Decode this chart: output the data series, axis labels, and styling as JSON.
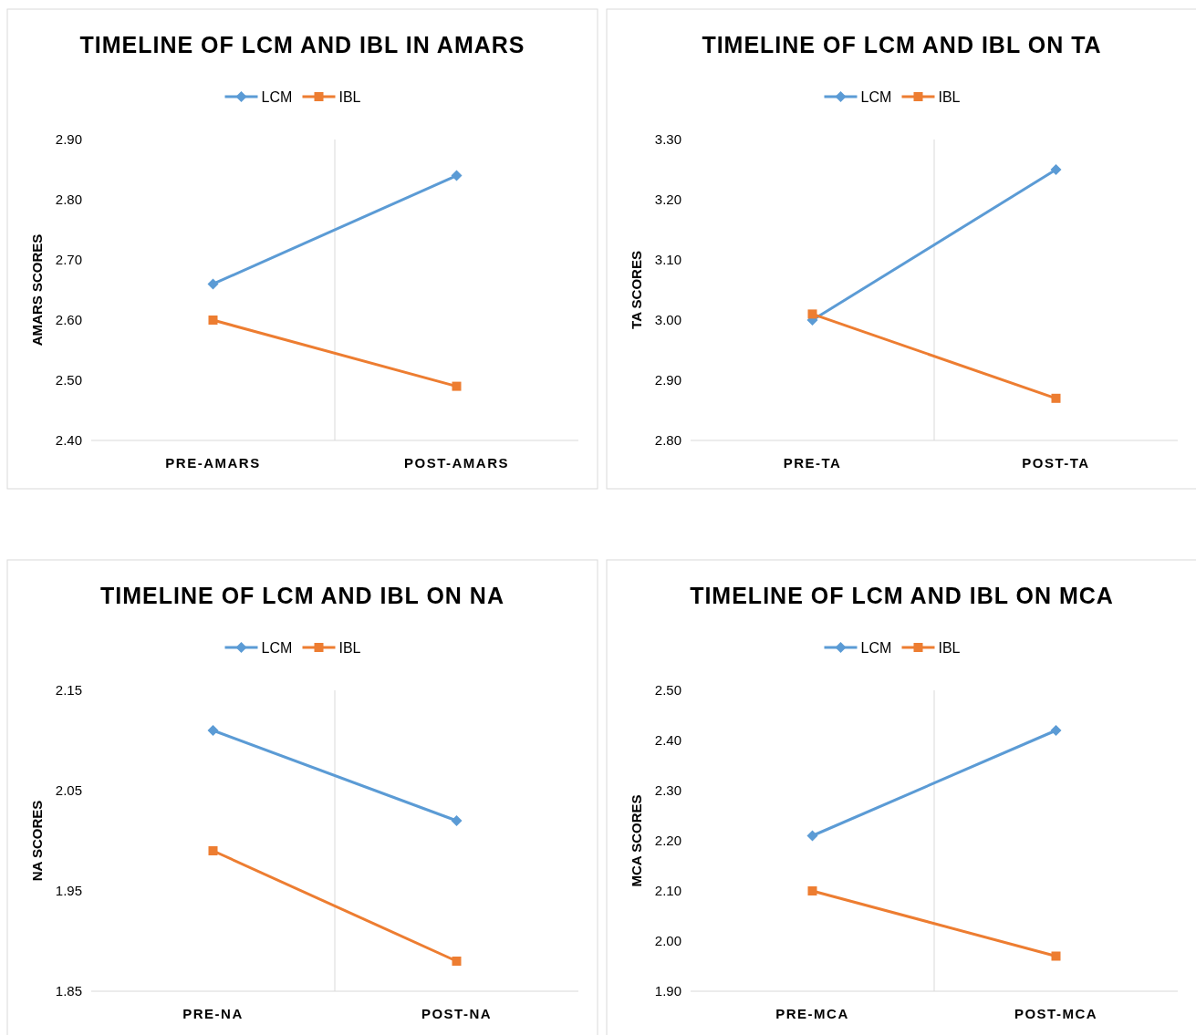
{
  "chart_data": [
    {
      "type": "line",
      "title": "TIMELINE OF LCM AND IBL IN AMARS",
      "ylabel": "AMARS SCORES",
      "categories": [
        "PRE-AMARS",
        "POST-AMARS"
      ],
      "ylim": [
        2.4,
        2.9
      ],
      "yticks": [
        {
          "value": 2.4,
          "label": "2.40"
        },
        {
          "value": 2.5,
          "label": "2.50"
        },
        {
          "value": 2.6,
          "label": "2.60"
        },
        {
          "value": 2.7,
          "label": "2.70"
        },
        {
          "value": 2.8,
          "label": "2.80"
        },
        {
          "value": 2.9,
          "label": "2.90"
        }
      ],
      "grid": "x",
      "legend": "top",
      "series": [
        {
          "name": "LCM",
          "color": "#5b9bd5",
          "marker": "diamond",
          "values": [
            2.66,
            2.84
          ]
        },
        {
          "name": "IBL",
          "color": "#ed7d31",
          "marker": "square",
          "values": [
            2.6,
            2.49
          ]
        }
      ]
    },
    {
      "type": "line",
      "title": "TIMELINE OF LCM AND IBL ON TA",
      "ylabel": "TA SCORES",
      "categories": [
        "PRE-TA",
        "POST-TA"
      ],
      "ylim": [
        2.8,
        3.3
      ],
      "yticks": [
        {
          "value": 2.8,
          "label": "2.80"
        },
        {
          "value": 2.9,
          "label": "2.90"
        },
        {
          "value": 3.0,
          "label": "3.00"
        },
        {
          "value": 3.1,
          "label": "3.10"
        },
        {
          "value": 3.2,
          "label": "3.20"
        },
        {
          "value": 3.3,
          "label": "3.30"
        }
      ],
      "grid": "x",
      "legend": "top",
      "series": [
        {
          "name": "LCM",
          "color": "#5b9bd5",
          "marker": "diamond",
          "values": [
            3.0,
            3.25
          ]
        },
        {
          "name": "IBL",
          "color": "#ed7d31",
          "marker": "square",
          "values": [
            3.01,
            2.87
          ]
        }
      ]
    },
    {
      "type": "line",
      "title": "TIMELINE OF LCM AND IBL ON NA",
      "ylabel": "NA SCORES",
      "categories": [
        "PRE-NA",
        "POST-NA"
      ],
      "ylim": [
        1.85,
        2.15
      ],
      "yticks": [
        1.85,
        1.95,
        2.05,
        2.15
      ],
      "grid": "x",
      "legend": "top",
      "series": [
        {
          "name": "LCM",
          "color": "#5b9bd5",
          "marker": "diamond",
          "values": [
            2.11,
            2.02
          ]
        },
        {
          "name": "IBL",
          "color": "#ed7d31",
          "marker": "square",
          "values": [
            1.99,
            1.88
          ]
        }
      ]
    },
    {
      "type": "line",
      "title": "TIMELINE OF LCM AND IBL ON MCA",
      "ylabel": "MCA SCORES",
      "categories": [
        "PRE-MCA",
        "POST-MCA"
      ],
      "ylim": [
        1.9,
        2.5
      ],
      "yticks": [
        {
          "value": 1.9,
          "label": "1.90"
        },
        {
          "value": 2.0,
          "label": "2.00"
        },
        {
          "value": 2.1,
          "label": "2.10"
        },
        {
          "value": 2.2,
          "label": "2.20"
        },
        {
          "value": 2.3,
          "label": "2.30"
        },
        {
          "value": 2.4,
          "label": "2.40"
        },
        {
          "value": 2.5,
          "label": "2.50"
        }
      ],
      "grid": "x",
      "legend": "top",
      "series": [
        {
          "name": "LCM",
          "color": "#5b9bd5",
          "marker": "diamond",
          "values": [
            2.21,
            2.42
          ]
        },
        {
          "name": "IBL",
          "color": "#ed7d31",
          "marker": "square",
          "values": [
            2.1,
            1.97
          ]
        }
      ]
    }
  ]
}
